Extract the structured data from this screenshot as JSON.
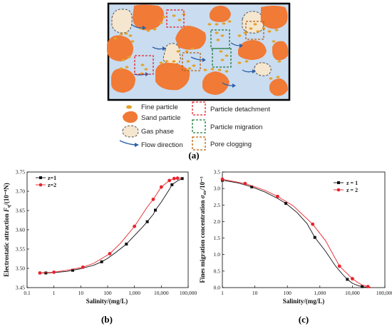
{
  "diagram": {
    "legend": [
      {
        "key": "fine",
        "label": "Fine particle"
      },
      {
        "key": "sand",
        "label": "Sand particle"
      },
      {
        "key": "gas",
        "label": "Gas phase"
      },
      {
        "key": "flow",
        "label": "Flow direction"
      },
      {
        "key": "detach",
        "label": "Particle detachment"
      },
      {
        "key": "migrate",
        "label": "Particle migration"
      },
      {
        "key": "clog",
        "label": "Pore clogging"
      }
    ],
    "panel_label": "(a)"
  },
  "colors": {
    "water": "#c9dcf0",
    "sand": "#f07a36",
    "fine": "#e2a229",
    "gas": "#f5e6cf",
    "detach": "#e8222a",
    "migrate": "#1e7a3a",
    "clog": "#b8620e",
    "flow": "#2b5fa8"
  },
  "chart_data": [
    {
      "type": "line",
      "panel_label": "(b)",
      "xlabel": "Salinity/(mg/L)",
      "ylabel": "Electrostatic attraction",
      "ylabel_symbol": "F",
      "ylabel_sub": "q",
      "ylabel_unit": "/(10⁻⁸N)",
      "xscale": "log",
      "xlim": [
        0.1,
        100000
      ],
      "ylim": [
        3.45,
        3.75
      ],
      "xticks": [
        "0.1",
        "1",
        "10",
        "100",
        "1,000",
        "10,000",
        "100,000"
      ],
      "yticks": [
        "3.45",
        "3.50",
        "3.55",
        "3.60",
        "3.65",
        "3.70",
        "3.75"
      ],
      "legend_position": "top-left",
      "series": [
        {
          "name": "z=1",
          "color": "#111111",
          "marker": "square",
          "x": [
            0.5,
            5,
            60,
            500,
            3000,
            6000,
            25000,
            60000
          ],
          "y": [
            3.488,
            3.495,
            3.517,
            3.563,
            3.621,
            3.651,
            3.717,
            3.733
          ],
          "curve_x": [
            0.3,
            0.5,
            1,
            3,
            10,
            30,
            60,
            100,
            200,
            500,
            1000,
            2000,
            3000,
            5000,
            6000,
            10000,
            20000,
            25000,
            40000,
            60000
          ],
          "curve_y": [
            3.488,
            3.488,
            3.489,
            3.492,
            3.499,
            3.508,
            3.517,
            3.526,
            3.541,
            3.563,
            3.585,
            3.607,
            3.621,
            3.64,
            3.651,
            3.672,
            3.705,
            3.717,
            3.727,
            3.733
          ]
        },
        {
          "name": "z=2",
          "color": "#e8222a",
          "marker": "circle",
          "x": [
            0.3,
            1,
            12,
            120,
            1000,
            5000,
            10000,
            20000,
            30000,
            40000
          ],
          "y": [
            3.488,
            3.49,
            3.503,
            3.538,
            3.609,
            3.679,
            3.711,
            3.728,
            3.733,
            3.734
          ],
          "curve_x": [
            0.3,
            1,
            3,
            12,
            30,
            120,
            300,
            1000,
            3000,
            5000,
            10000,
            20000,
            30000,
            40000,
            60000
          ],
          "curve_y": [
            3.488,
            3.49,
            3.495,
            3.503,
            3.513,
            3.538,
            3.565,
            3.609,
            3.659,
            3.679,
            3.711,
            3.728,
            3.733,
            3.734,
            3.734
          ]
        }
      ]
    },
    {
      "type": "line",
      "panel_label": "(c)",
      "xlabel": "Salinity/(mg/L)",
      "ylabel": "Fines migration concentration",
      "ylabel_symbol": "σ",
      "ylabel_sub": "str",
      "ylabel_unit": "/10⁻³",
      "xscale": "log",
      "xlim": [
        1,
        100000
      ],
      "ylim": [
        0,
        3.5
      ],
      "xticks": [
        "1",
        "10",
        "100",
        "1,000",
        "10,000",
        "100,000"
      ],
      "yticks": [
        "0.0",
        "0.5",
        "1.0",
        "1.5",
        "2.0",
        "2.5",
        "3.0",
        "3.5"
      ],
      "legend_position": "top-right",
      "series": [
        {
          "name": "z = 1",
          "color": "#111111",
          "marker": "square",
          "x": [
            1,
            8,
            90,
            700,
            7000,
            20000
          ],
          "y": [
            3.25,
            3.05,
            2.55,
            1.52,
            0.25,
            0.03
          ],
          "curve_x": [
            1,
            3,
            8,
            20,
            50,
            90,
            200,
            400,
            700,
            1500,
            3000,
            5000,
            7000,
            10000,
            15000,
            20000,
            30000
          ],
          "curve_y": [
            3.25,
            3.17,
            3.05,
            2.9,
            2.7,
            2.55,
            2.27,
            1.94,
            1.52,
            1.1,
            0.66,
            0.4,
            0.25,
            0.13,
            0.06,
            0.03,
            0.0
          ]
        },
        {
          "name": "z = 2",
          "color": "#e8222a",
          "marker": "circle",
          "x": [
            1,
            5,
            50,
            600,
            4000,
            10000,
            30000
          ],
          "y": [
            3.28,
            3.15,
            2.76,
            1.92,
            0.65,
            0.27,
            0.03
          ],
          "curve_x": [
            1,
            5,
            20,
            50,
            150,
            600,
            1500,
            4000,
            7000,
            10000,
            15000,
            20000,
            30000,
            40000
          ],
          "curve_y": [
            3.28,
            3.15,
            2.95,
            2.76,
            2.48,
            1.92,
            1.42,
            0.65,
            0.42,
            0.27,
            0.15,
            0.08,
            0.03,
            0.0
          ]
        }
      ]
    }
  ]
}
